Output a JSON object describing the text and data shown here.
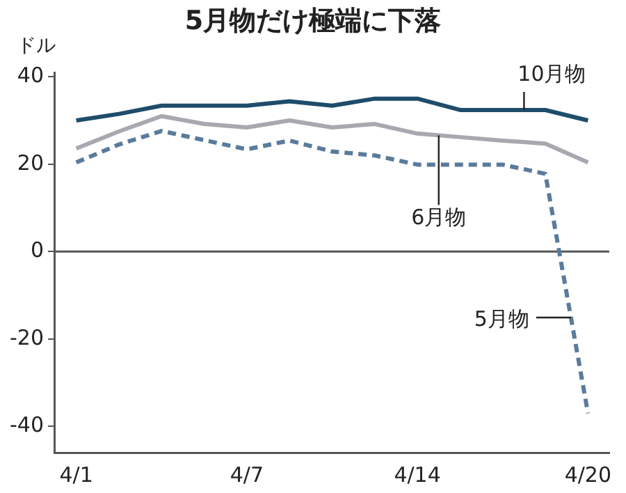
{
  "chart_data": {
    "type": "line",
    "title": "5月物だけ極端に下落",
    "ylabel": "ドル",
    "categories": [
      "4/1",
      null,
      null,
      null,
      "4/7",
      null,
      null,
      null,
      "4/14",
      null,
      null,
      null,
      "4/20"
    ],
    "series": [
      {
        "name": "10月物",
        "color": "#1e4d6b",
        "line_style": "solid",
        "values": [
          30,
          31.5,
          33.4,
          33.4,
          33.4,
          34.4,
          33.4,
          35,
          35,
          32.4,
          32.4,
          32.4,
          30
        ]
      },
      {
        "name": "6月物",
        "color": "#a8a8b0",
        "line_style": "solid",
        "values": [
          23.6,
          27.5,
          31,
          29.2,
          28.4,
          30,
          28.4,
          29.2,
          27,
          26.2,
          25.4,
          24.7,
          20.4
        ]
      },
      {
        "name": "5月物",
        "color": "#5a7b9c",
        "line_style": "dashed",
        "values": [
          20.4,
          24.5,
          27.6,
          25.5,
          23.4,
          25.4,
          22.9,
          22,
          19.9,
          19.9,
          19.9,
          17.8,
          -37
        ]
      }
    ],
    "ylim": [
      -46,
      41
    ],
    "yticks": [
      -40,
      -20,
      0,
      20,
      40
    ],
    "grid": false,
    "legend": false,
    "marker": "none",
    "ref_lines": [
      {
        "axis": "y",
        "value": 0,
        "color": "#555555"
      }
    ]
  }
}
